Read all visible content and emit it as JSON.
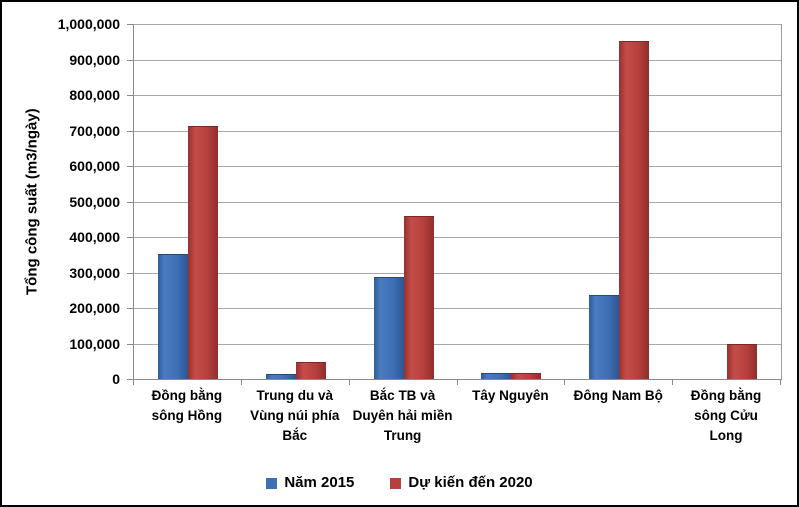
{
  "chart_data": {
    "type": "bar",
    "title": "",
    "xlabel": "",
    "ylabel": "Tổng công suất (m3/ngày)",
    "ylim": [
      0,
      1000000
    ],
    "ytick_step": 100000,
    "grid": true,
    "legend_position": "bottom",
    "categories": [
      "Đồng bằng sông Hồng",
      "Trung du và Vùng núi phía Bắc",
      "Bắc TB và Duyên hải miền Trung",
      "Tây Nguyên",
      "Đông Nam Bộ",
      "Đồng bằng sông Cửu Long"
    ],
    "series": [
      {
        "name": "Năm 2015",
        "color": "#3e6eb4",
        "values": [
          350000,
          10000,
          285000,
          13000,
          235000,
          0
        ]
      },
      {
        "name": "Dự kiến đến 2020",
        "color": "#b6403d",
        "values": [
          710000,
          45000,
          455000,
          13000,
          950000,
          95000
        ]
      }
    ]
  },
  "colors": {
    "gridline": "#a8a8a8",
    "axis": "#8a8a8a",
    "background": "#ffffff",
    "border": "#000000",
    "text": "#000000"
  }
}
